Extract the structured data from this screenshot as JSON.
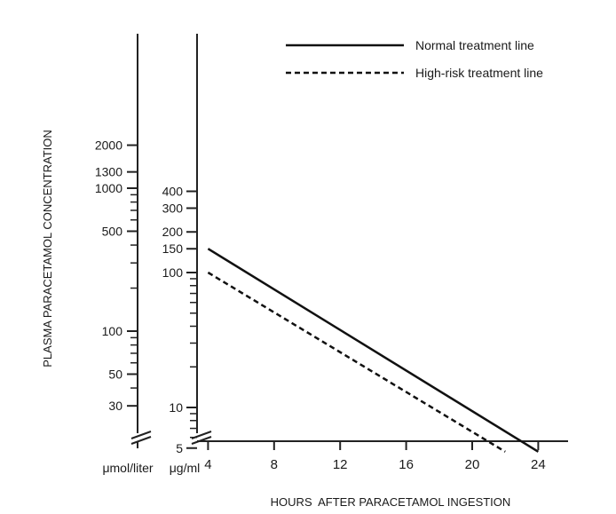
{
  "chart_data": {
    "type": "line",
    "ylabel": "PLASMA PARACETAMOL CONCENTRATION",
    "xlabel": "HOURS  AFTER PARACETAMOL INGESTION",
    "x_ticks": [
      4,
      8,
      12,
      16,
      20,
      24
    ],
    "xlim": [
      0,
      26
    ],
    "y_scale": "log",
    "y_axis_umol": {
      "unit_label": "μmol/liter",
      "tick_labels": [
        2000,
        1300,
        1000,
        500,
        100,
        50,
        30
      ],
      "minor_ticks": [
        900,
        800,
        700,
        600,
        400,
        300,
        200,
        90,
        80,
        70,
        60,
        40
      ]
    },
    "y_axis_ugml": {
      "unit_label": "μg/ml",
      "tick_labels": [
        400,
        300,
        200,
        150,
        100,
        10,
        5
      ],
      "minor_ticks": [
        90,
        80,
        70,
        60,
        50,
        40,
        30,
        20,
        9,
        8,
        7,
        6
      ]
    },
    "series": [
      {
        "name": "Normal treatment line",
        "style": "solid",
        "x": [
          4,
          24
        ],
        "y": [
          150,
          4.7
        ]
      },
      {
        "name": "High-risk treatment line",
        "style": "dashed",
        "x": [
          4,
          22
        ],
        "y": [
          100,
          4.7
        ]
      }
    ],
    "legend": {
      "position": "top-right"
    },
    "grid": false,
    "colors": {
      "line": "#111111",
      "axis": "#222222",
      "text": "#1a1a1a"
    }
  }
}
